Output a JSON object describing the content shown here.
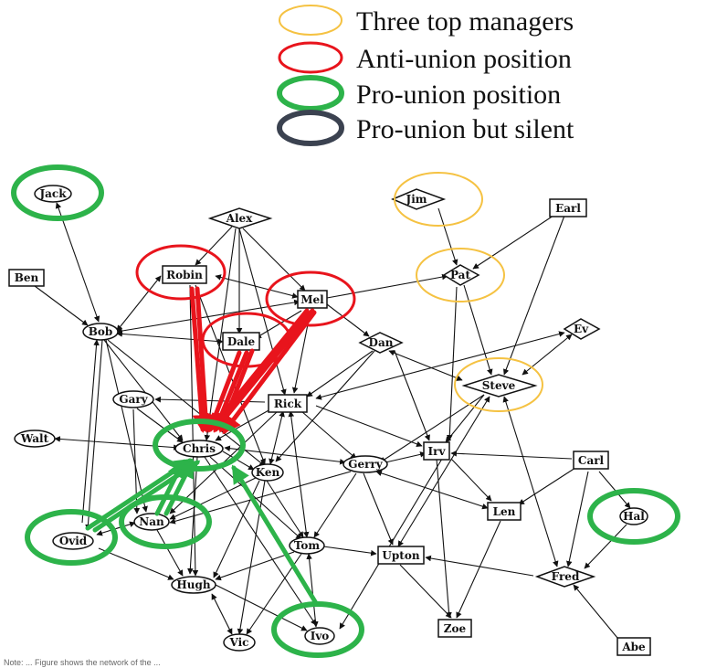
{
  "legend": {
    "items": [
      {
        "label": "Three top managers",
        "color": "#f5c242",
        "weight": 2
      },
      {
        "label": "Anti-union position",
        "color": "#e8141c",
        "weight": 3
      },
      {
        "label": "Pro-union position",
        "color": "#2db34a",
        "weight": 6
      },
      {
        "label": "Pro-union but silent",
        "color": "#3b4250",
        "weight": 6
      }
    ]
  },
  "footnote": "Note: ... Figure shows the network of the ... ",
  "nodes": {
    "jack": "Jack",
    "ben": "Ben",
    "bob": "Bob",
    "robin": "Robin",
    "alex": "Alex",
    "mel": "Mel",
    "dale": "Dale",
    "jim": "Jim",
    "earl": "Earl",
    "pat": "Pat",
    "dan": "Dan",
    "ev": "Ev",
    "steve": "Steve",
    "gary": "Gary",
    "rick": "Rick",
    "walt": "Walt",
    "chris": "Chris",
    "irv": "Irv",
    "gerry": "Gerry",
    "ken": "Ken",
    "carl": "Carl",
    "len": "Len",
    "hal": "Hal",
    "nan": "Nan",
    "ovid": "Ovid",
    "tom": "Tom",
    "upton": "Upton",
    "fred": "Fred",
    "hugh": "Hugh",
    "zoe": "Zoe",
    "vic": "Vic",
    "ivo": "Ivo",
    "abe": "Abe"
  },
  "colors": {
    "manager": "#f5c242",
    "anti_union": "#e8141c",
    "pro_union": "#2db34a",
    "silent": "#3b4250",
    "edge": "#111111"
  }
}
